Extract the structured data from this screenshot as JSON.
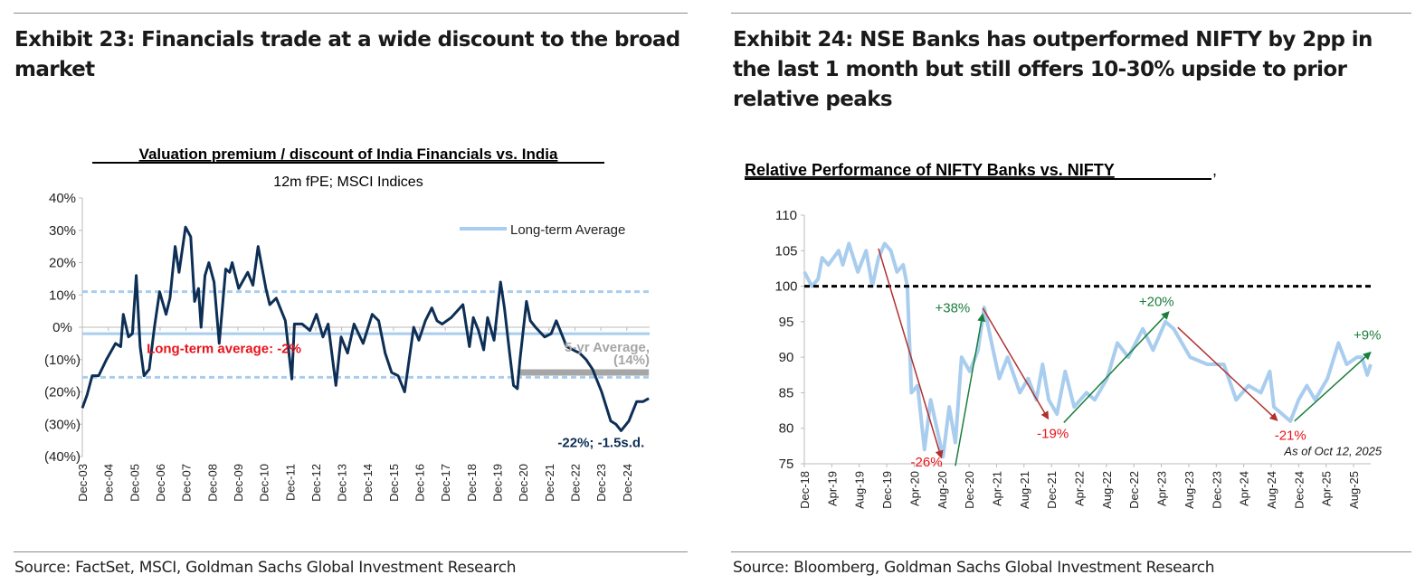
{
  "left": {
    "exhibit_title": "Exhibit 23: Financials trade at a wide discount to the broad market",
    "source": "Source: FactSet, MSCI, Goldman Sachs Global Investment Research"
  },
  "right": {
    "exhibit_title": "Exhibit 24: NSE Banks has outperformed NIFTY by 2pp in the last 1 month but still offers 10-30% upside to prior relative peaks",
    "source": "Source: Bloomberg, Goldman Sachs Global Investment Research"
  },
  "colors": {
    "navy": "#0d2f55",
    "lightblue": "#a9cdee",
    "gray": "#a6a6a6",
    "red": "#e8131b",
    "darkred": "#b03030",
    "green": "#1a7f3c"
  },
  "chart_data": [
    {
      "type": "line",
      "title": "Valuation premium / discount of India Financials vs. India",
      "subtitle": "12m fPE; MSCI Indices",
      "ylim": [
        -40,
        40
      ],
      "yticks": [
        40,
        30,
        20,
        10,
        0,
        -10,
        -20,
        -30,
        -40
      ],
      "ytick_labels": [
        "40%",
        "30%",
        "20%",
        "10%",
        "0%",
        "(10%)",
        "(20%)",
        "(30%)",
        "(40%)"
      ],
      "xlim": [
        2003.92,
        2025.8
      ],
      "xtick_labels": [
        "Dec-03",
        "Dec-04",
        "Dec-05",
        "Dec-06",
        "Dec-07",
        "Dec-08",
        "Dec-09",
        "Dec-10",
        "Dec-11",
        "Dec-12",
        "Dec-13",
        "Dec-14",
        "Dec-15",
        "Dec-16",
        "Dec-17",
        "Dec-18",
        "Dec-19",
        "Dec-20",
        "Dec-21",
        "Dec-22",
        "Dec-23",
        "Dec-24"
      ],
      "legend": {
        "label": "Long-term Average",
        "position": "top-right"
      },
      "series": [
        {
          "color": "#0d2f55",
          "points": [
            [
              2003.92,
              -25
            ],
            [
              2004.1,
              -21
            ],
            [
              2004.3,
              -15
            ],
            [
              2004.55,
              -15
            ],
            [
              2004.85,
              -10
            ],
            [
              2005.2,
              -5
            ],
            [
              2005.4,
              -6
            ],
            [
              2005.5,
              4
            ],
            [
              2005.7,
              -3
            ],
            [
              2005.85,
              -2
            ],
            [
              2006.0,
              16
            ],
            [
              2006.15,
              -6
            ],
            [
              2006.3,
              -15
            ],
            [
              2006.5,
              -13
            ],
            [
              2006.7,
              0
            ],
            [
              2006.9,
              11
            ],
            [
              2007.15,
              4
            ],
            [
              2007.3,
              9
            ],
            [
              2007.5,
              25
            ],
            [
              2007.65,
              17
            ],
            [
              2007.9,
              31
            ],
            [
              2008.1,
              28
            ],
            [
              2008.25,
              8
            ],
            [
              2008.4,
              12
            ],
            [
              2008.5,
              0
            ],
            [
              2008.65,
              16
            ],
            [
              2008.8,
              20
            ],
            [
              2009.0,
              14
            ],
            [
              2009.2,
              -5
            ],
            [
              2009.45,
              18
            ],
            [
              2009.6,
              17
            ],
            [
              2009.7,
              20
            ],
            [
              2009.95,
              12
            ],
            [
              2010.3,
              17
            ],
            [
              2010.5,
              13
            ],
            [
              2010.7,
              25
            ],
            [
              2011.0,
              12
            ],
            [
              2011.15,
              7
            ],
            [
              2011.4,
              9
            ],
            [
              2011.75,
              2
            ],
            [
              2012.0,
              -16
            ],
            [
              2012.1,
              1
            ],
            [
              2012.4,
              1
            ],
            [
              2012.7,
              -1
            ],
            [
              2012.95,
              4
            ],
            [
              2013.2,
              -3
            ],
            [
              2013.4,
              1
            ],
            [
              2013.7,
              -18
            ],
            [
              2013.9,
              -3
            ],
            [
              2014.15,
              -8
            ],
            [
              2014.4,
              1
            ],
            [
              2014.75,
              -5
            ],
            [
              2015.1,
              4
            ],
            [
              2015.35,
              2
            ],
            [
              2015.6,
              -8
            ],
            [
              2015.85,
              -14
            ],
            [
              2016.1,
              -15
            ],
            [
              2016.35,
              -20
            ],
            [
              2016.7,
              0
            ],
            [
              2016.9,
              -4
            ],
            [
              2017.15,
              2
            ],
            [
              2017.4,
              6
            ],
            [
              2017.6,
              2
            ],
            [
              2017.8,
              1
            ],
            [
              2018.15,
              3
            ],
            [
              2018.6,
              7
            ],
            [
              2018.85,
              -6
            ],
            [
              2019.0,
              3
            ],
            [
              2019.2,
              -1
            ],
            [
              2019.4,
              -7
            ],
            [
              2019.55,
              3
            ],
            [
              2019.8,
              -4
            ],
            [
              2020.05,
              14
            ],
            [
              2020.2,
              6
            ],
            [
              2020.4,
              -8
            ],
            [
              2020.55,
              -18
            ],
            [
              2020.7,
              -19
            ],
            [
              2020.8,
              -10
            ],
            [
              2021.05,
              8
            ],
            [
              2021.2,
              2
            ],
            [
              2021.4,
              0
            ],
            [
              2021.75,
              -3
            ],
            [
              2022.0,
              -2
            ],
            [
              2022.2,
              2
            ],
            [
              2022.6,
              -6
            ],
            [
              2023.1,
              -8
            ],
            [
              2023.35,
              -10
            ],
            [
              2023.6,
              -13
            ],
            [
              2023.95,
              -20
            ],
            [
              2024.3,
              -29
            ],
            [
              2024.5,
              -30
            ],
            [
              2024.7,
              -32
            ],
            [
              2025.0,
              -29
            ],
            [
              2025.3,
              -23
            ],
            [
              2025.55,
              -23
            ],
            [
              2025.77,
              -22
            ]
          ]
        }
      ],
      "reference_lines": [
        {
          "value": -2,
          "style": "solid",
          "color": "#a9cdee"
        },
        {
          "value": 11,
          "style": "dashed",
          "color": "#a9cdee"
        },
        {
          "value": -15.5,
          "style": "dashed",
          "color": "#a9cdee"
        },
        {
          "value": -14,
          "style": "solid",
          "color": "#a6a6a6",
          "from": 2020.7,
          "to": 2025.77
        }
      ],
      "annotations": [
        {
          "text": "Long-term average: -2%",
          "color": "#e8131b",
          "x": 2006.4,
          "y": -8
        },
        {
          "text": "5-yr Average,",
          "color": "#a6a6a6",
          "x": 2025.8,
          "y": -7.5
        },
        {
          "text": "(14%)",
          "color": "#a6a6a6",
          "x": 2025.8,
          "y": -11.5
        },
        {
          "text": "-22%; -1.5s.d.",
          "color": "#0d2f55",
          "x": 2025.6,
          "y": -37
        }
      ]
    },
    {
      "type": "line",
      "title": "Relative Performance of NIFTY Banks vs. NIFTY",
      "title_suffix": ",",
      "ylim": [
        75,
        110
      ],
      "yticks": [
        110,
        105,
        100,
        95,
        90,
        85,
        80,
        75
      ],
      "xlim": [
        0,
        82.5
      ],
      "x_unit": "months since Dec-18",
      "xtick_labels": [
        "Dec-18",
        "Apr-19",
        "Aug-19",
        "Dec-19",
        "Apr-20",
        "Aug-20",
        "Dec-20",
        "Apr-21",
        "Aug-21",
        "Dec-21",
        "Apr-22",
        "Aug-22",
        "Dec-22",
        "Apr-23",
        "Aug-23",
        "Dec-23",
        "Apr-24",
        "Aug-24",
        "Dec-24",
        "Apr-25",
        "Aug-25"
      ],
      "series": [
        {
          "color": "#a9cdee",
          "points": [
            [
              0,
              102
            ],
            [
              1.1,
              100
            ],
            [
              2,
              101
            ],
            [
              2.6,
              104
            ],
            [
              3.5,
              103
            ],
            [
              5,
              105
            ],
            [
              5.6,
              103
            ],
            [
              6.5,
              106
            ],
            [
              7.8,
              102
            ],
            [
              9,
              105
            ],
            [
              9.9,
              100
            ],
            [
              10.8,
              104
            ],
            [
              11.7,
              106
            ],
            [
              12.6,
              105
            ],
            [
              13.5,
              102
            ],
            [
              14.4,
              103
            ],
            [
              15,
              100
            ],
            [
              15.6,
              85
            ],
            [
              16.5,
              86
            ],
            [
              17.5,
              77
            ],
            [
              18.4,
              84
            ],
            [
              19.3,
              80
            ],
            [
              20.2,
              76
            ],
            [
              21.1,
              83
            ],
            [
              22,
              78
            ],
            [
              22.9,
              90
            ],
            [
              24.1,
              88
            ],
            [
              25.3,
              91
            ],
            [
              26.2,
              97
            ],
            [
              27.5,
              91
            ],
            [
              28.4,
              87
            ],
            [
              29.6,
              90
            ],
            [
              31.4,
              85
            ],
            [
              32.6,
              87
            ],
            [
              33.8,
              84
            ],
            [
              34.7,
              89
            ],
            [
              35.6,
              84
            ],
            [
              36.8,
              82
            ],
            [
              38,
              88
            ],
            [
              39.3,
              83
            ],
            [
              41.1,
              85
            ],
            [
              42.3,
              84
            ],
            [
              44.1,
              87
            ],
            [
              45.6,
              92
            ],
            [
              47.2,
              90
            ],
            [
              49.3,
              94
            ],
            [
              50.8,
              91
            ],
            [
              52.6,
              95
            ],
            [
              53.8,
              94
            ],
            [
              55,
              92
            ],
            [
              56.2,
              90
            ],
            [
              58.7,
              89
            ],
            [
              61.1,
              89
            ],
            [
              62.9,
              84
            ],
            [
              64.7,
              86
            ],
            [
              66.5,
              85
            ],
            [
              67.8,
              88
            ],
            [
              68.4,
              83
            ],
            [
              69.6,
              82
            ],
            [
              70.8,
              81
            ],
            [
              72,
              84
            ],
            [
              73.2,
              86
            ],
            [
              74.4,
              84
            ],
            [
              76.2,
              87
            ],
            [
              77.8,
              92
            ],
            [
              79,
              89
            ],
            [
              80.5,
              90
            ],
            [
              81.2,
              90
            ],
            [
              82,
              87.5
            ],
            [
              82.5,
              89
            ]
          ]
        }
      ],
      "reference_lines": [
        {
          "value": 100,
          "style": "dashed",
          "color": "#000000"
        }
      ],
      "arrows": [
        {
          "from": [
            10.8,
            105.3
          ],
          "to": [
            20,
            75.7
          ],
          "color": "#b03030"
        },
        {
          "from": [
            22,
            74.7
          ],
          "to": [
            26,
            96.2
          ],
          "color": "#1a7f3c"
        },
        {
          "from": [
            26,
            96.9
          ],
          "to": [
            35.6,
            81.2
          ],
          "color": "#b03030"
        },
        {
          "from": [
            37.8,
            80.8
          ],
          "to": [
            53.2,
            96.5
          ],
          "color": "#1a7f3c"
        },
        {
          "from": [
            54.4,
            94.2
          ],
          "to": [
            69,
            81
          ],
          "color": "#b03030"
        },
        {
          "from": [
            71.4,
            81
          ],
          "to": [
            82.6,
            90.8
          ],
          "color": "#1a7f3c"
        }
      ],
      "annotations": [
        {
          "text": "-26%",
          "color": "#e8131b",
          "x": 17.8,
          "y": 74.6
        },
        {
          "text": "+38%",
          "color": "#1a7f3c",
          "x": 21.6,
          "y": 96.3
        },
        {
          "text": "-19%",
          "color": "#e8131b",
          "x": 36.2,
          "y": 78.6
        },
        {
          "text": "+20%",
          "color": "#1a7f3c",
          "x": 51.3,
          "y": 97.2
        },
        {
          "text": "-21%",
          "color": "#e8131b",
          "x": 70.8,
          "y": 78.4
        },
        {
          "text": "+9%",
          "color": "#1a7f3c",
          "x": 82,
          "y": 92.5
        },
        {
          "text": "As of Oct 12, 2025",
          "color": "#1a1a1a",
          "x": 77,
          "y": 76.2,
          "italic": true
        }
      ]
    }
  ]
}
